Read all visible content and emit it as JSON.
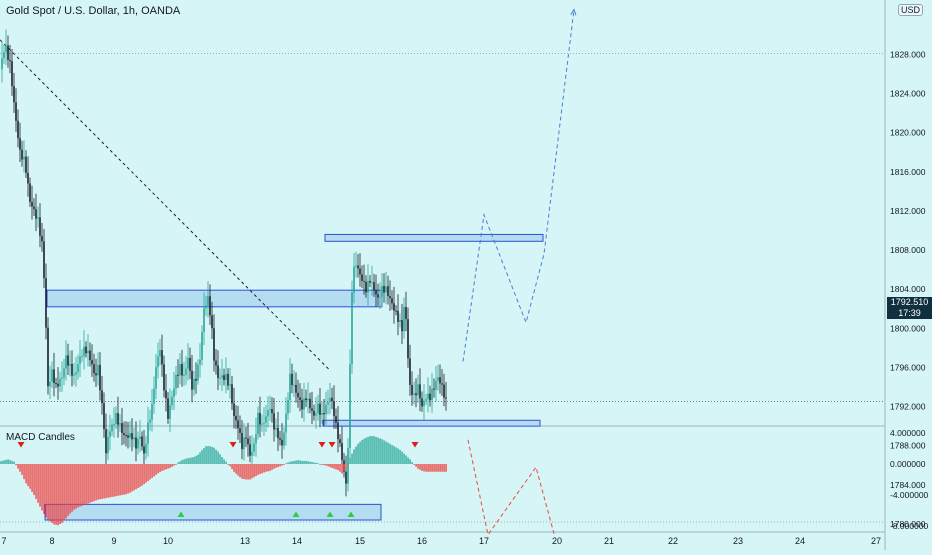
{
  "header": {
    "title": "Gold Spot / U.S. Dollar, 1h, OANDA",
    "currency": "USD"
  },
  "indicator": {
    "title": "MACD Candles"
  },
  "last_price": {
    "value": "1792.510",
    "countdown": "17:39"
  },
  "colors": {
    "background": "#d6f5f6",
    "bull": "#26a69a",
    "bear": "#ef3b3b",
    "zone_fill": "#a9d4f0",
    "zone_border": "#2f4fd6",
    "path_up": "#4a7fd6",
    "path_down": "#e84b3c"
  },
  "chart_data": [
    {
      "type": "candlestick",
      "title": "Gold Spot / U.S. Dollar, 1h, OANDA",
      "x_ticks": [
        "7",
        "8",
        "9",
        "10",
        "13",
        "14",
        "15",
        "16",
        "17",
        "20",
        "21",
        "22",
        "23",
        "24",
        "27"
      ],
      "y_ticks": [
        "1828.000",
        "1824.000",
        "1820.000",
        "1816.000",
        "1812.000",
        "1808.000",
        "1804.000",
        "1800.000",
        "1796.000",
        "1792.000",
        "1788.000",
        "1784.000",
        "1780.000"
      ],
      "ylim": [
        1777.2,
        1832.6
      ],
      "grid": false,
      "close_path": [
        [
          0,
          1826.5
        ],
        [
          5,
          1829
        ],
        [
          10,
          1827
        ],
        [
          15,
          1822
        ],
        [
          20,
          1818
        ],
        [
          25,
          1817
        ],
        [
          30,
          1813
        ],
        [
          38,
          1811
        ],
        [
          43,
          1808
        ],
        [
          46,
          1800
        ],
        [
          48,
          1794
        ],
        [
          52,
          1795.5
        ],
        [
          56,
          1794
        ],
        [
          62,
          1795
        ],
        [
          66,
          1797
        ],
        [
          70,
          1796
        ],
        [
          74,
          1795
        ],
        [
          80,
          1797
        ],
        [
          85,
          1798
        ],
        [
          90,
          1797
        ],
        [
          95,
          1795
        ],
        [
          98,
          1796
        ],
        [
          101,
          1793
        ],
        [
          104,
          1790
        ],
        [
          106,
          1787
        ],
        [
          108,
          1789
        ],
        [
          112,
          1790
        ],
        [
          116,
          1791
        ],
        [
          120,
          1790
        ],
        [
          124,
          1789
        ],
        [
          128,
          1789
        ],
        [
          132,
          1789
        ],
        [
          136,
          1788
        ],
        [
          140,
          1789
        ],
        [
          144,
          1787
        ],
        [
          148,
          1790
        ],
        [
          152,
          1792
        ],
        [
          156,
          1796
        ],
        [
          160,
          1798
        ],
        [
          164,
          1794
        ],
        [
          168,
          1791
        ],
        [
          172,
          1793
        ],
        [
          176,
          1795
        ],
        [
          180,
          1796
        ],
        [
          184,
          1795
        ],
        [
          188,
          1797
        ],
        [
          192,
          1794
        ],
        [
          196,
          1795
        ],
        [
          200,
          1797
        ],
        [
          204,
          1802
        ],
        [
          208,
          1803
        ],
        [
          211,
          1801
        ],
        [
          214,
          1797
        ],
        [
          218,
          1795
        ],
        [
          222,
          1795
        ],
        [
          226,
          1795
        ],
        [
          230,
          1794
        ],
        [
          234,
          1791
        ],
        [
          238,
          1790
        ],
        [
          242,
          1788
        ],
        [
          246,
          1789
        ],
        [
          250,
          1787
        ],
        [
          254,
          1788
        ],
        [
          258,
          1791
        ],
        [
          262,
          1790
        ],
        [
          266,
          1791
        ],
        [
          270,
          1792
        ],
        [
          274,
          1790
        ],
        [
          278,
          1789
        ],
        [
          282,
          1788
        ],
        [
          286,
          1791
        ],
        [
          290,
          1795
        ],
        [
          294,
          1794
        ],
        [
          298,
          1793
        ],
        [
          302,
          1792
        ],
        [
          306,
          1793
        ],
        [
          310,
          1792
        ],
        [
          314,
          1791
        ],
        [
          318,
          1792
        ],
        [
          322,
          1791
        ],
        [
          326,
          1792
        ],
        [
          330,
          1793
        ],
        [
          333,
          1792
        ],
        [
          336,
          1790
        ],
        [
          340,
          1788
        ],
        [
          343,
          1786
        ],
        [
          346,
          1784
        ],
        [
          348,
          1788
        ],
        [
          350,
          1796
        ],
        [
          352,
          1804
        ],
        [
          355,
          1807
        ],
        [
          358,
          1806
        ],
        [
          362,
          1805
        ],
        [
          366,
          1804
        ],
        [
          370,
          1805
        ],
        [
          374,
          1804
        ],
        [
          378,
          1803
        ],
        [
          382,
          1804
        ],
        [
          386,
          1804
        ],
        [
          390,
          1803
        ],
        [
          394,
          1802
        ],
        [
          398,
          1801
        ],
        [
          402,
          1800
        ],
        [
          405,
          1803
        ],
        [
          408,
          1797
        ],
        [
          410,
          1794
        ],
        [
          414,
          1793
        ],
        [
          418,
          1794
        ],
        [
          422,
          1792
        ],
        [
          426,
          1793
        ],
        [
          430,
          1793
        ],
        [
          434,
          1794
        ],
        [
          438,
          1795
        ],
        [
          442,
          1794
        ],
        [
          446,
          1792.5
        ]
      ],
      "zones": [
        {
          "name": "resistance-upper",
          "y": [
            1808.9,
            1809.6
          ]
        },
        {
          "name": "resistance-mid",
          "y": [
            1802.2,
            1803.9
          ]
        },
        {
          "name": "support-mid",
          "y": [
            1790.0,
            1790.6
          ]
        },
        {
          "name": "support-lower",
          "y": [
            1780.4,
            1782.0
          ]
        }
      ],
      "trendline": [
        [
          0,
          1829.5
        ],
        [
          330,
          1795.7
        ]
      ],
      "scenario_up": [
        [
          463,
          1796.6
        ],
        [
          484,
          1811.6
        ],
        [
          526,
          1800.6
        ],
        [
          544,
          1807.6
        ],
        [
          574,
          1832.6
        ]
      ],
      "scenario_down": [
        [
          468,
          1788.6
        ],
        [
          488,
          1778.9
        ],
        [
          536,
          1785.8
        ],
        [
          554,
          1779.0
        ]
      ],
      "level_lines": [
        1828.1,
        1780.2
      ],
      "last_price": 1792.51
    },
    {
      "type": "bar",
      "title": "MACD Candles",
      "y_ticks": [
        "4.000000",
        "0.000000",
        "-4.000000",
        "-8.000000"
      ],
      "ylim": [
        -9.8,
        5.8
      ],
      "histogram": [
        [
          0,
          0.35
        ],
        [
          8,
          0.6
        ],
        [
          14,
          0.3
        ],
        [
          18,
          -0.6
        ],
        [
          22,
          -1.4
        ],
        [
          26,
          -2.5
        ],
        [
          30,
          -3.2
        ],
        [
          34,
          -4.0
        ],
        [
          38,
          -5.0
        ],
        [
          42,
          -6.0
        ],
        [
          46,
          -6.9
        ],
        [
          50,
          -7.4
        ],
        [
          54,
          -7.8
        ],
        [
          58,
          -7.9
        ],
        [
          62,
          -7.6
        ],
        [
          66,
          -7.0
        ],
        [
          70,
          -6.4
        ],
        [
          74,
          -5.9
        ],
        [
          78,
          -5.6
        ],
        [
          82,
          -5.4
        ],
        [
          86,
          -5.2
        ],
        [
          90,
          -5.0
        ],
        [
          94,
          -4.8
        ],
        [
          98,
          -4.6
        ],
        [
          102,
          -4.5
        ],
        [
          106,
          -4.4
        ],
        [
          110,
          -4.3
        ],
        [
          114,
          -4.2
        ],
        [
          118,
          -4.1
        ],
        [
          122,
          -4.0
        ],
        [
          126,
          -3.9
        ],
        [
          130,
          -3.7
        ],
        [
          134,
          -3.4
        ],
        [
          138,
          -3.1
        ],
        [
          142,
          -2.8
        ],
        [
          146,
          -2.4
        ],
        [
          150,
          -2.0
        ],
        [
          154,
          -1.6
        ],
        [
          158,
          -1.2
        ],
        [
          162,
          -0.9
        ],
        [
          166,
          -0.7
        ],
        [
          170,
          -0.5
        ],
        [
          174,
          -0.2
        ],
        [
          178,
          0.2
        ],
        [
          182,
          0.5
        ],
        [
          186,
          0.7
        ],
        [
          190,
          0.8
        ],
        [
          194,
          0.9
        ],
        [
          198,
          1.2
        ],
        [
          202,
          1.8
        ],
        [
          206,
          2.3
        ],
        [
          210,
          2.3
        ],
        [
          214,
          2.1
        ],
        [
          218,
          1.6
        ],
        [
          222,
          0.9
        ],
        [
          226,
          0.3
        ],
        [
          230,
          -0.3
        ],
        [
          234,
          -1.0
        ],
        [
          238,
          -1.5
        ],
        [
          242,
          -1.9
        ],
        [
          246,
          -2.0
        ],
        [
          250,
          -2.0
        ],
        [
          254,
          -1.7
        ],
        [
          258,
          -1.4
        ],
        [
          262,
          -1.2
        ],
        [
          266,
          -1.0
        ],
        [
          270,
          -0.9
        ],
        [
          274,
          -0.6
        ],
        [
          278,
          -0.4
        ],
        [
          282,
          -0.2
        ],
        [
          286,
          0.1
        ],
        [
          290,
          0.3
        ],
        [
          294,
          0.4
        ],
        [
          298,
          0.5
        ],
        [
          302,
          0.4
        ],
        [
          306,
          0.4
        ],
        [
          310,
          0.3
        ],
        [
          314,
          0.2
        ],
        [
          318,
          0.1
        ],
        [
          322,
          -0.1
        ],
        [
          326,
          -0.2
        ],
        [
          330,
          -0.4
        ],
        [
          334,
          -0.6
        ],
        [
          338,
          -0.8
        ],
        [
          342,
          -1.2
        ],
        [
          346,
          -0.6
        ],
        [
          350,
          0.8
        ],
        [
          354,
          1.9
        ],
        [
          358,
          2.6
        ],
        [
          362,
          3.1
        ],
        [
          366,
          3.4
        ],
        [
          370,
          3.6
        ],
        [
          374,
          3.6
        ],
        [
          378,
          3.4
        ],
        [
          382,
          3.2
        ],
        [
          386,
          2.9
        ],
        [
          390,
          2.6
        ],
        [
          394,
          2.3
        ],
        [
          398,
          2.0
        ],
        [
          402,
          1.6
        ],
        [
          406,
          1.1
        ],
        [
          410,
          0.6
        ],
        [
          414,
          -0.1
        ],
        [
          418,
          -0.6
        ],
        [
          422,
          -0.9
        ],
        [
          426,
          -1.0
        ],
        [
          430,
          -1.0
        ],
        [
          434,
          -1.0
        ],
        [
          438,
          -1.0
        ],
        [
          442,
          -1.0
        ],
        [
          446,
          -1.0
        ]
      ],
      "sell_markers": [
        21,
        233,
        322,
        332,
        415
      ],
      "buy_markers": [
        181,
        296,
        330,
        351
      ]
    }
  ]
}
